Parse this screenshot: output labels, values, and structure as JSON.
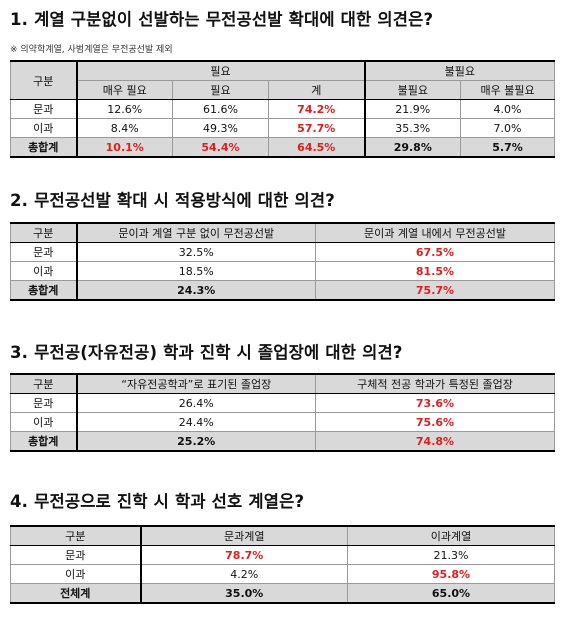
{
  "q1": {
    "title": "1. 계열 구분없이 선발하는 무전공선발 확대에 대한 의견은?",
    "note": "※ 의약학계열, 사범계열은 무전공선발 제외",
    "header": {
      "gubun": "구분",
      "need": "필요",
      "no_need": "불필요",
      "sub": [
        "매우 필요",
        "필요",
        "계",
        "불필요",
        "매우 불필요"
      ]
    },
    "rows": [
      {
        "label": "문과",
        "vals": [
          "12.6%",
          "61.6%",
          "74.2%",
          "21.9%",
          "4.0%"
        ]
      },
      {
        "label": "이과",
        "vals": [
          "8.4%",
          "49.3%",
          "57.7%",
          "35.3%",
          "7.0%"
        ]
      },
      {
        "label": "총합계",
        "vals": [
          "10.1%",
          "54.4%",
          "64.5%",
          "29.8%",
          "5.7%"
        ]
      }
    ]
  },
  "q2": {
    "title": "2. 무전공선발 확대 시 적용방식에 대한 의견?",
    "header": [
      "구분",
      "문이과 계열 구분 없이 무전공선발",
      "문이과 계열 내에서 무전공선발"
    ],
    "rows": [
      {
        "label": "문과",
        "vals": [
          "32.5%",
          "67.5%"
        ]
      },
      {
        "label": "이과",
        "vals": [
          "18.5%",
          "81.5%"
        ]
      },
      {
        "label": "총합계",
        "vals": [
          "24.3%",
          "75.7%"
        ]
      }
    ]
  },
  "q3": {
    "title": "3. 무전공(자유전공) 학과 진학 시 졸업장에 대한 의견?",
    "header": [
      "구분",
      "“자유전공학과”로 표기된 졸업장",
      "구체적 전공 학과가 특정된 졸업장"
    ],
    "rows": [
      {
        "label": "문과",
        "vals": [
          "26.4%",
          "73.6%"
        ]
      },
      {
        "label": "이과",
        "vals": [
          "24.4%",
          "75.6%"
        ]
      },
      {
        "label": "총합계",
        "vals": [
          "25.2%",
          "74.8%"
        ]
      }
    ]
  },
  "q4": {
    "title": "4. 무전공으로 진학 시 학과 선호 계열은?",
    "header": [
      "구분",
      "문과계열",
      "이과계열"
    ],
    "rows": [
      {
        "label": "문과",
        "vals": [
          "78.7%",
          "21.3%"
        ]
      },
      {
        "label": "이과",
        "vals": [
          "4.2%",
          "95.8%"
        ]
      },
      {
        "label": "전체계",
        "vals": [
          "35.0%",
          "65.0%"
        ]
      }
    ]
  },
  "colors": {
    "highlight": "#e41c1c",
    "header_bg": "#d9d9d9"
  }
}
